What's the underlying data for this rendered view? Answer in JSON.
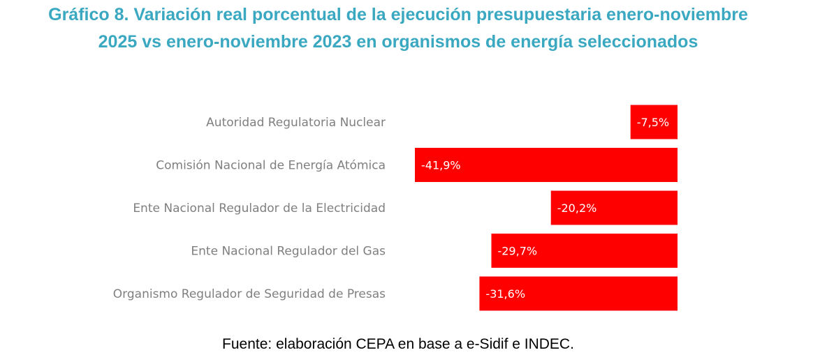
{
  "chart_data": {
    "type": "bar",
    "orientation": "horizontal",
    "title": "Gráfico 8. Variación real porcentual de la ejecución presupuestaria enero-noviembre 2025 vs enero-noviembre 2023 en organismos de energía seleccionados",
    "categories": [
      "Autoridad Regulatoria Nuclear",
      "Comisión Nacional de Energía Atómica",
      "Ente Nacional Regulador de la Electricidad",
      "Ente Nacional Regulador del Gas",
      "Organismo Regulador de Seguridad de Presas"
    ],
    "values": [
      -7.5,
      -41.9,
      -20.2,
      -29.7,
      -31.6
    ],
    "data_labels": [
      "-7,5%",
      "-41,9%",
      "-20,2%",
      "-29,7%",
      "-31,6%"
    ],
    "xlim": [
      -45,
      0
    ],
    "xlabel": "",
    "ylabel": "",
    "grid": false,
    "legend": "none",
    "bar_color": "#ff0000"
  },
  "source": "Fuente: elaboración CEPA en base a e-Sidif e INDEC."
}
